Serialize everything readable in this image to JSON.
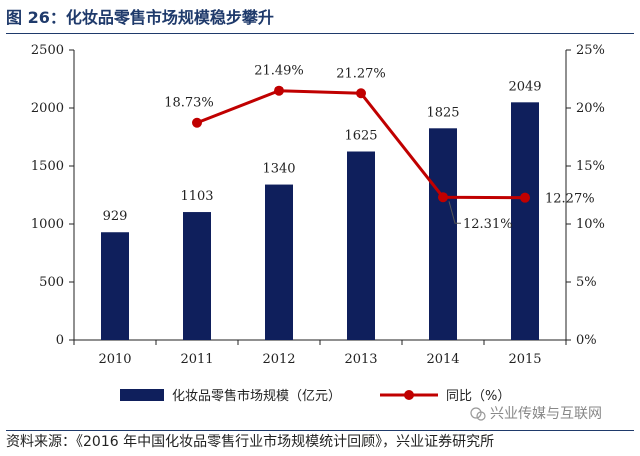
{
  "title": "图 26：化妆品零售市场规模稳步攀升",
  "source": "资料来源：《2016 年中国化妆品零售行业市场规模统计回顾》，兴业证券研究所",
  "watermark": "兴业传媒与互联网",
  "colors": {
    "bar": "#0f1f5c",
    "line": "#c00000",
    "title": "#1f3a6b"
  },
  "chart_data": {
    "type": "bar",
    "title": "图 26：化妆品零售市场规模稳步攀升",
    "categories": [
      "2010",
      "2011",
      "2012",
      "2013",
      "2014",
      "2015"
    ],
    "series": [
      {
        "name": "化妆品零售市场规模（亿元）",
        "type": "bar",
        "axis": "left",
        "values": [
          929,
          1103,
          1340,
          1625,
          1825,
          2049
        ],
        "labels": [
          "929",
          "1103",
          "1340",
          "1625",
          "1825",
          "2049"
        ]
      },
      {
        "name": "同比（%）",
        "type": "line",
        "axis": "right",
        "values": [
          null,
          18.73,
          21.49,
          21.27,
          12.31,
          12.27
        ],
        "labels": [
          "",
          "18.73%",
          "21.49%",
          "21.27%",
          "12.31%",
          "12.27%"
        ]
      }
    ],
    "ylim_left": [
      0,
      2500
    ],
    "ylim_right": [
      0,
      25
    ],
    "yticks_left": [
      "0",
      "500",
      "1000",
      "1500",
      "2000",
      "2500"
    ],
    "yticks_right": [
      "0%",
      "5%",
      "10%",
      "15%",
      "20%",
      "25%"
    ],
    "legend_position": "bottom",
    "grid": false
  }
}
